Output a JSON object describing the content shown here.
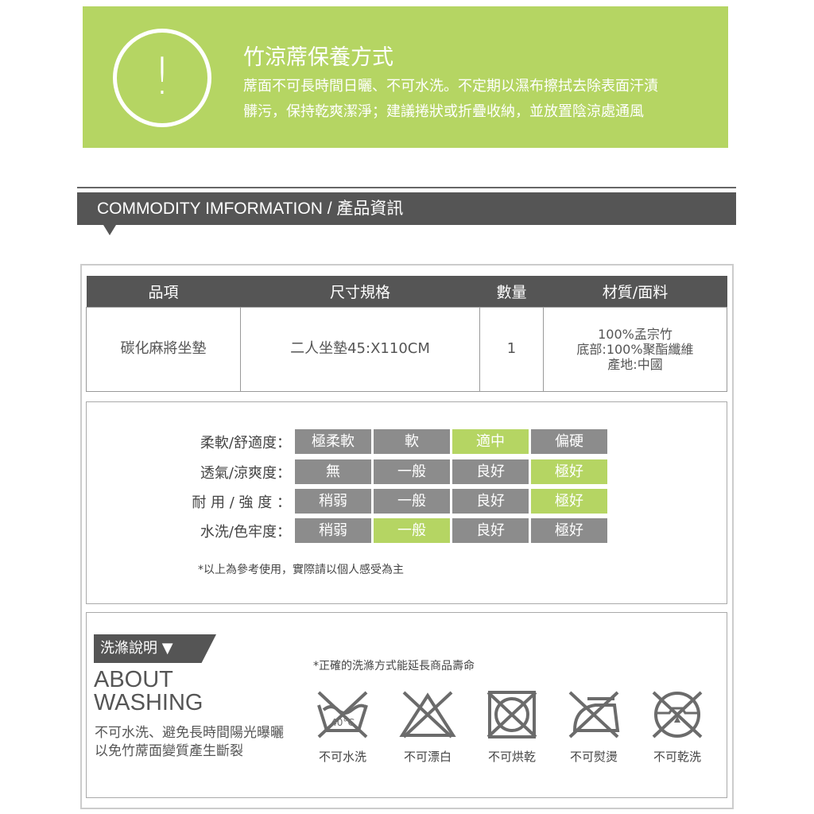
{
  "banner": {
    "icon": "exclamation-circle-icon",
    "title": "竹涼蓆保養方式",
    "lines": [
      "蓆面不可長時間日曬、不可水洗。不定期以濕布擦拭去除表面汗漬",
      "髒污，保持乾爽潔淨；建議捲狀或折疊收納，並放置陰涼處通風"
    ],
    "color": "#b5d563"
  },
  "header": {
    "title": "COMMODITY IMFORMATION / 產品資訊"
  },
  "table": {
    "headers": [
      "品項",
      "尺寸規格",
      "數量",
      "材質/面料"
    ],
    "row": {
      "item": "碳化麻將坐墊",
      "size": "二人坐墊45:X110CM",
      "qty": "1",
      "material": [
        "100%孟宗竹",
        "底部:100%聚酯纖維",
        "產地:中國"
      ]
    }
  },
  "ratings": {
    "rows": [
      {
        "label": "柔軟/舒適度：",
        "options": [
          "極柔軟",
          "軟",
          "適中",
          "偏硬"
        ],
        "selected": 2
      },
      {
        "label": "透氣/涼爽度：",
        "options": [
          "無",
          "一般",
          "良好",
          "極好"
        ],
        "selected": 3
      },
      {
        "label": "耐 用 / 強 度 ：",
        "options": [
          "稍弱",
          "一般",
          "良好",
          "極好"
        ],
        "selected": 3
      },
      {
        "label": "水洗/色牢度：",
        "options": [
          "稍弱",
          "一般",
          "良好",
          "極好"
        ],
        "selected": 1
      }
    ],
    "note": "*以上為參考使用，實際請以個人感受為主",
    "selected_color": "#b5d563",
    "default_color": "#8c8c8c"
  },
  "washing": {
    "tag": "洗滌說明 ▼",
    "about": [
      "ABOUT",
      "WASHING"
    ],
    "text": [
      "不可水洗、避免長時間陽光曝曬",
      "以免竹蓆面變質產生斷裂"
    ],
    "note": "*正確的洗滌方式能延長商品壽命",
    "icons": [
      {
        "icon": "no-wash-icon",
        "label": "不可水洗"
      },
      {
        "icon": "no-bleach-icon",
        "label": "不可漂白"
      },
      {
        "icon": "no-tumble-dry-icon",
        "label": "不可烘乾"
      },
      {
        "icon": "no-iron-icon",
        "label": "不可熨燙"
      },
      {
        "icon": "no-dry-clean-icon",
        "label": "不可乾洗"
      }
    ]
  }
}
